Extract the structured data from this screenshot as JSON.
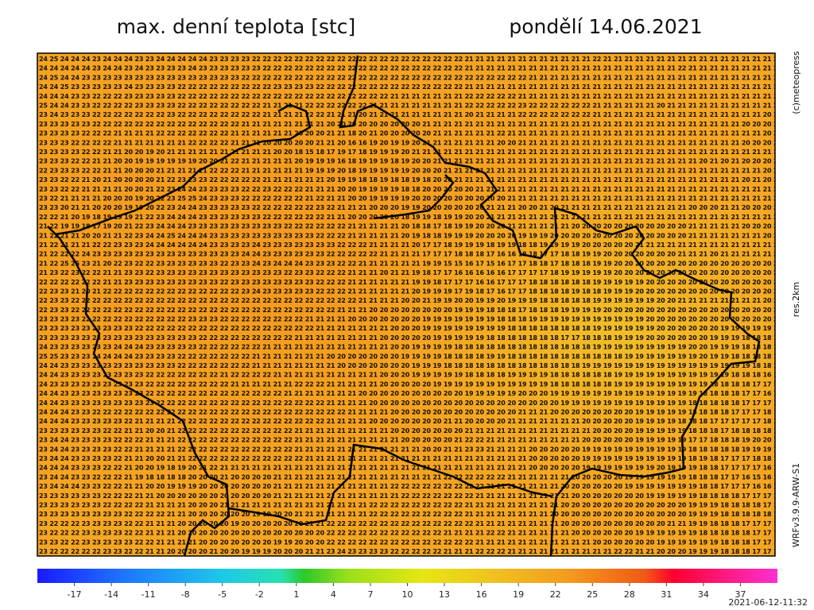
{
  "header": {
    "title": "max. denní teplota [stc]",
    "date": "pondělí 14.06.2021"
  },
  "side_labels": {
    "copyright": "(c)meteopress",
    "resolution": "res.2km",
    "model": "WRFv3.9.9-ARW-S1"
  },
  "map": {
    "rows": [
      "24 25 24 24 24 23 24 24 24 23 23 24 24 24 24 24 23 23 23 23 22 22 22 22 22 22 22 22 22 22 22 22 22 22 22 22 22 22 22 22 21 21 21 21 21 21 21 21 21 21 21 21 22 21 21 21 21 21 21 21 21 21 21 21 21 21 21 21 21 21",
      "24 24 24 24 24 23 24 24 23 24 23 23 23 23 24 23 23 23 23 23 23 22 22 22 22 22 22 22 22 22 22 22 22 22 22 22 22 22 22 22 21 21 21 21 21 21 21 21 21 21 21 21 21 21 21 21 21 21 21 21 22 21 21 21 21 21 21 21 21 21",
      "24 25 24 24 23 23 23 23 23 23 23 23 23 23 23 23 23 23 23 22 22 22 22 22 22 22 22 22 22 22 22 22 22 22 22 22 22 22 22 22 22 22 22 22 22 22 21 21 21 21 21 21 21 21 21 21 21 21 21 21 21 21 21 21 21 21 21 21 21 21",
      "24 24 25 23 23 23 23 23 24 23 23 23 23 22 22 22 22 22 22 22 22 22 23 23 23 23 22 22 22 22 22 22 22 22 22 22 22 22 22 22 21 21 21 21 21 21 21 21 21 21 21 21 21 21 21 21 21 21 21 21 21 21 21 21 21 21 21 21 21 21",
      "24 24 24 23 23 22 22 22 23 23 23 23 23 22 22 22 22 22 22 22 22 22 22 22 22 22 22 22 22 22 22 22 22 21 21 21 21 21 21 21 22 22 22 22 22 21 21 21 21 21 21 21 21 21 21 21 21 21 21 21 21 21 21 21 21 21 21 21 21 21",
      "25 24 24 23 23 22 22 22 22 23 23 23 23 22 22 22 22 22 22 22 22 21 21 21 21 22 22 22 22 22 22 21 21 21 21 21 21 21 21 21 22 22 22 22 22 23 22 22 22 22 22 22 21 21 21 21 21 21 20 21 21 21 21 21 21 21 21 21 21 21",
      "23 24 23 23 23 22 22 22 22 22 22 22 23 22 22 22 22 22 22 22 22 21 21 21 21 22 22 21 21 21 20 21 21 21 21 21 21 21 21 21 20 21 21 21 21 22 22 22 22 22 22 22 21 21 21 21 21 21 21 21 21 21 21 21 21 21 21 21 20 20",
      "23 23 23 23 23 22 22 22 22 22 22 22 22 22 22 22 22 22 22 21 21 21 21 21 21 21 21 20 20 20 20 20 20 20 20 20 21 21 21 21 21 21 21 21 21 21 21 21 21 21 21 21 21 21 21 21 21 21 21 21 21 21 21 21 21 21 20 20 20 20",
      "23 23 23 23 22 22 22 21 21 21 21 22 22 22 22 22 22 22 21 21 21 21 21 21 20 20 20 21 21 18 20 21 20 20 20 20 20 21 21 21 21 21 21 22 21 21 21 21 21 21 21 21 21 21 21 21 21 21 21 21 21 21 21 21 21 21 21 21 20 20",
      "23 23 23 22 22 22 22 21 21 21 21 21 21 21 22 22 22 22 21 21 21 20 20 20 20 20 21 21 20 16 16 19 20 19 19 20 21 21 21 21 21 21 21 20 20 21 21 21 21 21 21 21 21 21 21 21 21 21 21 21 21 21 21 21 21 21 20 20 20 20",
      "23 23 23 23 22 22 21 21 20 20 19 20 21 21 21 21 21 21 21 21 21 21 20 20 18 15 18 17 19 17 18 19 19 19 20 21 21 21 21 21 21 21 21 21 21 21 21 21 21 21 21 21 21 21 21 21 21 21 21 21 21 21 21 21 21 21 21 21 21 21",
      "23 23 23 22 22 21 21 20 20 19 19 19 19 19 19 20 20 21 22 21 21 21 21 21 20 19 19 19 16 18 19 19 19 18 19 20 20 21 21 21 21 21 21 21 21 21 21 21 21 21 21 21 21 21 21 21 21 21 21 21 21 21 20 21 20 21 20 20 20 20",
      "22 23 23 23 22 22 21 21 20 20 20 21 21 21 21 21 22 22 22 21 21 21 21 21 21 19 19 19 20 18 19 19 19 19 19 20 20 20 21 21 21 21 21 21 21 21 21 21 21 21 21 21 21 21 21 21 21 21 21 21 21 21 21 21 21 21 21 21 20 20",
      "23 23 22 22 21 20 21 20 20 20 20 21 22 23 23 23 22 22 22 22 22 21 21 21 21 21 21 20 19 19 18 18 19 18 18 19 18 20 20 21 21 21 21 21 21 21 21 21 21 21 21 21 21 21 21 21 21 21 21 21 21 21 21 21 21 21 20 21 20 20",
      "23 23 22 22 21 21 21 21 20 20 21 22 23 24 24 23 23 23 23 22 22 23 22 22 22 21 21 21 20 20 19 19 19 19 18 18 20 20 20 20 20 21 21 21 21 21 21 21 21 21 21 21 21 21 21 21 21 21 21 21 21 21 21 21 21 21 21 21 21 20",
      "23 22 21 21 21 21 20 20 20 19 20 22 23 25 25 24 23 23 23 22 22 22 22 22 22 21 22 21 21 20 20 19 19 19 19 20 20 20 20 20 20 20 20 20 21 21 21 21 21 21 21 21 21 21 21 21 21 21 21 21 21 21 21 21 21 21 21 21 21 21",
      "23 23 20 21 21 20 20 20 19 19 20 22 23 24 24 23 23 23 23 23 22 22 22 22 22 22 23 22 21 21 21 20 20 20 19 19 20 20 20 20 20 20 21 21 21 20 20 21 20 21 21 21 21 21 21 21 21 21 21 21 21 20 20 20 21 21 20 20 20 20",
      "22 22 21 20 19 18 19 19 19 21 22 23 24 24 24 23 23 23 23 23 23 22 22 22 22 22 22 21 21 20 20 20 20 20 18 19 19 18 19 19 20 20 21 21 21 21 21 21 21 21 21 21 21 21 21 21 21 21 21 21 21 21 21 21 21 21 21 21 21 21",
      "21 22 19 19 18 17 19 20 21 22 23 24 24 24 23 23 23 23 23 23 23 23 23 22 22 22 22 22 22 21 21 21 21 21 20 18 18 17 18 19 19 20 20 20 21 21 21 21 21 21 20 20 20 20 20 20 20 20 20 20 20 21 21 21 21 21 20 20 20 20",
      "21 22 21 21 20 20 21 21 22 23 24 24 25 24 24 24 23 23 23 23 23 23 23 23 23 23 22 22 22 21 21 21 21 21 20 19 18 18 19 19 19 20 20 20 20 19 19 19 20 20 20 20 20 20 20 20 20 20 20 20 20 21 21 21 21 21 21 21 20 20",
      "21 22 21 21 21 22 22 23 23 23 24 24 24 24 24 24 23 23 23 23 24 23 23 23 23 23 23 23 22 22 22 21 21 21 21 20 17 17 18 19 19 19 18 19 19 18 18 19 19 19 19 20 20 20 20 20 21 21 21 21 21 21 21 21 21 21 21 21 21 21",
      "21 22 22 22 24 23 23 23 23 23 23 23 23 23 23 23 23 23 23 24 24 23 23 23 23 23 23 22 22 22 22 22 21 21 21 21 17 17 17 18 18 18 17 16 16 18 18 17 17 18 18 19 19 20 20 20 20 20 20 20 21 21 21 20 21 21 21 21 21 20",
      "21 22 25 25 23 21 20 22 23 22 22 23 23 23 23 23 23 22 23 23 24 23 24 24 24 23 23 23 22 22 21 21 21 21 21 21 19 19 15 15 16 17 15 16 17 17 18 18 17 18 18 18 19 19 20 20 20 20 20 20 20 20 20 20 20 20 20 20 20 20",
      "21 23 22 23 22 22 21 21 23 23 22 23 23 23 23 23 23 23 23 23 23 23 23 22 23 23 22 22 22 21 21 21 20 21 21 19 18 17 17 16 16 16 16 16 17 17 17 17 18 19 19 19 19 19 20 20 20 20 20 20 20 20 20 20 20 20 20 20 20 20",
      "22 22 22 22 22 22 21 21 23 23 23 23 23 23 23 23 23 22 23 23 23 23 23 23 23 23 22 22 22 21 21 21 21 21 21 19 19 18 17 17 17 16 16 17 17 17 18 18 18 18 18 18 19 19 19 19 19 20 20 20 20 20 20 20 20 20 20 20 20 20",
      "22 23 23 21 20 21 22 22 22 22 22 22 22 22 22 22 22 22 22 23 24 23 23 23 23 23 22 22 22 21 21 21 21 21 21 20 19 19 19 17 19 18 17 16 17 17 18 18 18 18 19 18 18 19 19 19 20 20 20 20 20 20 20 20 20 20 20 20 20 20",
      "22 23 23 22 22 22 22 22 22 22 22 22 22 22 22 22 22 22 22 22 22 22 22 22 22 22 22 22 22 22 21 21 21 21 20 20 21 19 19 20 20 19 19 20 19 19 19 18 18 18 18 18 19 19 19 19 19 19 20 20 21 21 21 21 21 21 21 21 20 20",
      "22 23 23 22 22 22 22 22 22 22 22 22 22 22 22 22 22 22 22 22 22 22 22 22 22 22 22 22 21 21 21 20 20 20 20 20 20 20 20 19 19 19 18 18 18 17 18 18 18 19 19 19 19 20 20 20 20 20 20 20 20 20 20 20 20 20 20 20 20 20",
      "23 23 23 23 22 22 22 22 22 22 22 22 22 22 23 23 23 22 22 22 22 22 22 22 22 21 21 21 21 20 20 20 20 20 20 20 19 19 19 19 19 19 19 18 18 18 19 19 19 19 19 19 19 19 19 19 19 20 20 20 20 20 20 20 20 20 20 20 20 20",
      "23 23 23 23 23 23 23 23 23 22 22 22 22 22 22 22 22 22 22 22 22 22 22 22 22 22 21 21 21 21 21 21 21 20 20 20 19 19 19 19 19 19 19 19 18 18 18 18 18 18 18 18 19 19 19 19 19 19 20 20 20 20 20 20 19 19 19 19 19 19",
      "23 23 23 23 23 23 23 23 23 23 23 23 23 23 23 22 22 22 22 22 22 22 22 22 21 21 21 21 21 21 21 21 20 20 20 20 20 19 19 19 19 19 18 18 18 18 18 18 18 17 17 18 18 18 19 19 19 20 20 20 20 20 20 19 19 19 18 18 18 18",
      "24 23 23 23 23 23 23 24 24 24 23 23 23 23 23 22 22 22 22 22 22 21 21 21 21 21 21 21 21 21 21 21 21 20 20 19 19 19 19 18 18 18 18 18 18 18 18 18 18 18 18 18 19 19 19 19 19 19 19 19 19 20 20 19 19 19 18 18 18 18",
      "25 25 23 23 23 24 24 24 24 23 23 23 23 22 22 22 22 22 22 22 21 21 21 21 21 21 21 20 20 20 20 20 20 20 19 19 19 19 18 18 18 18 19 19 18 18 18 18 18 18 18 18 18 18 18 19 19 19 19 19 19 19 20 19 19 18 18 18 18 18",
      "24 24 23 23 23 23 23 23 23 23 23 23 23 22 22 22 22 22 22 22 21 21 21 21 21 21 21 21 20 20 20 20 20 20 20 19 19 19 18 18 18 18 18 18 18 18 18 18 18 18 18 19 19 19 19 19 19 19 19 19 19 19 19 19 19 19 19 18 18 18",
      "24 24 23 23 23 23 23 23 23 23 22 22 22 22 22 22 22 21 22 22 22 22 21 21 21 21 21 21 21 21 21 21 20 20 20 19 19 19 19 19 18 18 18 18 19 19 19 19 18 18 18 18 18 18 19 19 19 19 19 19 19 19 19 19 19 18 18 18 16 16",
      "24 23 23 23 23 23 23 23 23 23 22 22 22 22 22 22 22 22 21 21 21 21 21 21 22 22 22 21 21 21 21 21 20 20 20 20 20 19 19 19 19 19 19 19 19 19 19 19 18 18 18 18 18 18 19 19 19 19 19 19 19 19 19 18 18 18 18 17 17 17",
      "24 24 23 23 23 23 23 23 23 23 22 22 22 22 22 22 22 22 22 22 22 22 22 21 21 21 21 21 21 21 20 20 20 20 20 20 20 20 20 20 19 19 19 19 19 20 20 20 19 19 19 19 19 19 19 19 19 19 19 19 19 19 18 18 18 18 17 17 16 16",
      "24 24 23 23 23 23 23 23 23 23 23 22 22 22 22 22 22 22 22 22 22 22 22 22 22 22 22 21 21 21 21 20 20 20 20 20 20 20 20 20 20 20 20 20 20 20 20 20 20 19 19 19 19 19 19 19 19 19 19 19 19 18 18 18 18 18 17 17 17 17",
      "24 24 24 23 23 22 22 22 22 22 22 22 22 22 22 22 22 22 22 22 22 22 22 22 22 22 22 22 22 21 21 21 21 20 20 20 20 20 20 20 20 20 20 20 20 21 21 21 20 20 20 20 20 20 20 20 19 19 19 19 19 18 18 18 18 17 17 17 18 18",
      "24 24 24 23 23 23 23 23 22 21 21 21 21 22 22 22 22 22 22 22 22 22 22 22 22 22 22 21 21 21 21 20 20 20 20 20 20 20 21 21 20 20 20 20 21 21 21 21 21 21 21 20 20 20 20 20 19 19 19 19 18 18 18 17 17 17 17 17 18 18",
      "23 23 23 23 23 23 22 22 21 21 20 20 21 22 22 22 22 22 22 22 22 22 22 22 21 21 21 21 21 21 21 21 21 20 20 20 20 20 20 20 21 21 21 21 21 21 21 21 21 21 21 21 20 20 20 20 19 19 19 19 19 18 18 18 17 18 18 18 18 18",
      "23 24 24 23 23 23 23 22 22 22 21 21 21 22 22 22 22 22 22 22 22 22 22 22 21 21 21 21 21 21 21 21 21 21 20 20 20 20 20 21 22 22 21 21 21 21 21 21 21 21 21 20 20 20 20 20 19 19 19 19 19 17 17 18 18 18 19 20 20 19",
      "23 24 24 23 23 23 23 22 22 21 21 21 21 22 22 22 22 22 22 22 22 22 22 22 21 21 21 21 21 21 21 21 21 21 21 21 20 20 21 21 23 23 21 21 21 21 20 20 20 20 20 19 19 19 19 19 19 19 19 19 19 18 18 18 18 18 19 19 19 19",
      "23 24 24 23 23 23 23 22 21 21 20 20 21 21 22 22 22 22 22 22 22 22 22 22 22 21 21 21 21 21 21 21 21 21 21 21 21 21 21 21 21 21 21 21 21 21 20 20 20 20 20 19 19 19 19 19 19 19 19 19 19 18 19 18 17 17 17 18 18 18",
      "24 24 24 23 23 23 22 22 21 20 20 19 18 19 20 21 22 21 21 21 21 21 21 21 21 21 21 21 21 21 21 21 21 21 21 21 21 21 21 21 21 21 21 21 21 21 20 20 20 20 20 19 19 19 19 19 19 19 20 19 19 19 18 18 17 17 17 17 16 16",
      "23 24 24 23 23 22 22 22 21 19 18 18 18 18 20 20 20 21 20 20 20 20 21 21 21 21 21 21 21 21 21 21 21 21 21 21 21 21 22 22 22 22 22 22 21 21 21 21 21 21 20 20 20 20 20 19 19 19 19 19 19 18 18 18 17 17 16 15 16 16",
      "23 24 24 24 23 23 22 22 21 21 20 20 19 19 19 20 20 20 20 20 20 20 21 21 21 21 21 21 21 21 21 21 21 22 22 22 22 22 22 22 22 22 21 21 21 21 21 21 21 20 20 20 20 20 20 19 19 19 19 19 19 19 18 18 17 17 17 16 16 16",
      "23 23 23 23 23 23 22 22 22 21 21 20 20 20 20 20 20 20 20 20 20 20 21 21 21 21 21 21 21 21 21 21 21 21 22 22 22 22 22 22 22 21 21 21 21 21 21 21 21 21 20 20 20 20 20 20 20 19 19 19 19 19 18 18 18 18 17 17 17 17",
      "23 23 23 23 23 23 22 22 22 22 21 21 21 21 20 20 20 21 21 21 21 21 21 21 21 21 21 21 21 21 21 22 22 22 22 22 22 22 22 22 21 21 21 21 21 21 21 21 21 20 20 20 20 20 20 20 20 20 20 20 20 19 19 19 18 18 18 18 17 17",
      "23 23 23 23 23 23 23 23 22 22 22 22 21 21 20 20 20 20 20 20 19 19 20 20 21 21 21 21 21 21 21 22 22 22 22 22 22 22 22 22 21 21 21 21 21 21 21 21 20 20 20 20 20 20 20 20 20 20 20 20 20 19 19 19 18 18 18 18 18 18",
      "23 22 22 22 23 23 23 23 22 22 21 21 21 20 20 20 20 20 19 20 20 20 20 20 20 21 21 22 22 22 22 22 22 22 22 22 22 22 22 22 22 21 21 21 21 21 21 21 21 20 20 20 20 20 20 20 20 20 20 21 21 19 19 18 18 18 17 17 17 17",
      "23 22 22 22 23 23 23 23 22 22 21 21 21 20 20 20 20 20 20 20 20 20 20 20 20 20 20 22 22 22 22 22 22 22 22 22 22 22 21 21 21 21 22 22 21 21 21 21 21 21 20 20 20 20 20 20 19 19 19 19 19 19 18 18 18 18 18 17 17 17",
      "23 23 22 22 23 23 23 23 23 22 22 21 21 21 21 20 20 20 20 20 20 20 19 19 20 20 20 22 22 22 22 22 22 22 22 22 22 22 22 22 22 21 21 21 21 21 21 21 21 21 21 21 20 20 20 20 20 20 19 19 19 19 19 19 18 18 18 17 17 17",
      "23 22 22 22 22 22 23 23 22 22 21 21 20 20 20 20 21 20 20 19 19 19 20 20 20 21 21 23 24 23 23 23 23 22 22 22 22 22 21 21 21 22 22 22 21 21 21 21 21 21 21 21 21 21 22 22 21 21 20 20 20 19 19 19 18 18 18 17 17 17"
    ]
  },
  "colorbar": {
    "ticks": [
      -17,
      -14,
      -11,
      -8,
      -5,
      -2,
      1,
      4,
      7,
      10,
      13,
      16,
      19,
      22,
      25,
      28,
      31,
      34,
      37
    ]
  },
  "footer": {
    "timestamp": "2021-06-12-11:32"
  }
}
